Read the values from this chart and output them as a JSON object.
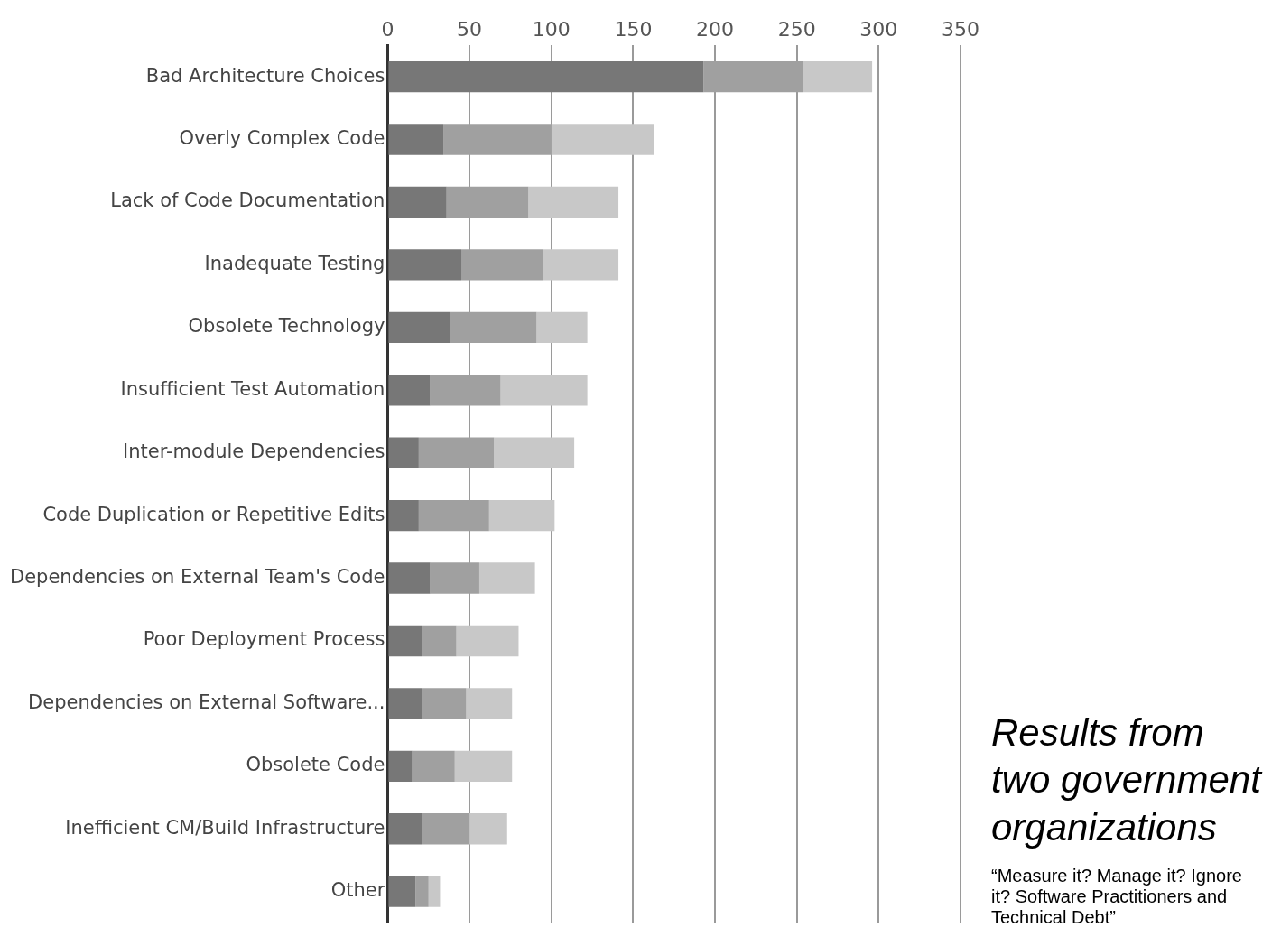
{
  "chart_data": {
    "type": "bar",
    "orientation": "horizontal",
    "stacked": true,
    "categories": [
      "Bad Architecture Choices",
      "Overly Complex Code",
      "Lack of Code Documentation",
      "Inadequate Testing",
      "Obsolete Technology",
      "Insufficient Test Automation",
      "Inter-module Dependencies",
      "Code Duplication or Repetitive Edits",
      "Dependencies on External Team's Code",
      "Poor Deployment Process",
      "Dependencies on External Software...",
      "Obsolete Code",
      "Inefficient CM/Build Infrastructure",
      "Other"
    ],
    "series": [
      {
        "color": "#777777",
        "values": [
          193,
          34,
          36,
          45,
          38,
          26,
          19,
          19,
          26,
          21,
          21,
          15,
          21,
          17
        ]
      },
      {
        "color": "#a0a0a0",
        "values": [
          61,
          66,
          50,
          50,
          53,
          43,
          46,
          43,
          30,
          21,
          27,
          26,
          29,
          8
        ]
      },
      {
        "color": "#c8c8c8",
        "values": [
          42,
          63,
          55,
          46,
          31,
          53,
          49,
          40,
          34,
          38,
          28,
          35,
          23,
          7
        ]
      }
    ],
    "xlim": [
      0,
      350
    ],
    "xticks": [
      0,
      50,
      100,
      150,
      200,
      250,
      300,
      350
    ],
    "grid": "x",
    "legend": false,
    "annotations": [
      "Results from two government organizations",
      "“Measure it? Manage it? Ignore it? Software Practitioners and Technical Debt”"
    ]
  }
}
